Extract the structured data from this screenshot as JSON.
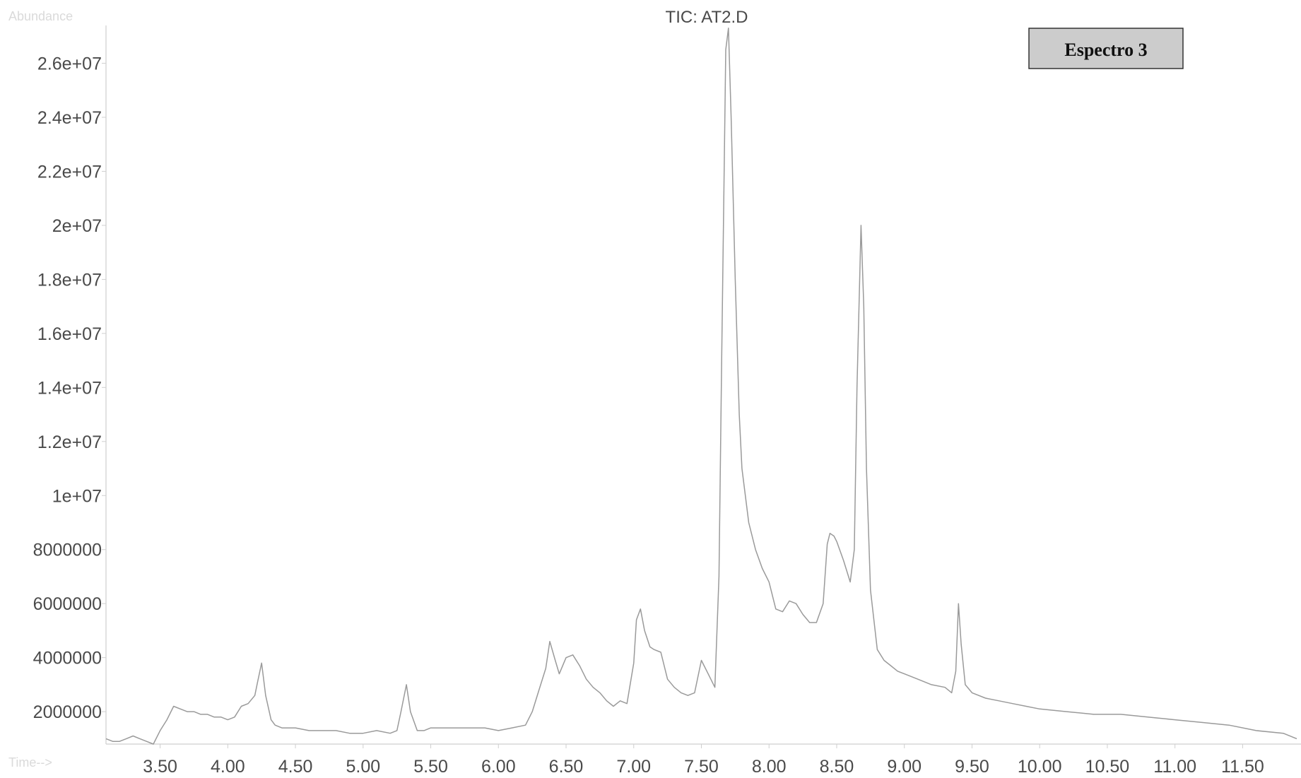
{
  "chart_data": {
    "type": "line",
    "title": "TIC: AT2.D",
    "ylabel": "Abundance",
    "xlabel": "Time-->",
    "annotation": "Espectro 3",
    "xlim": [
      3.1,
      11.9
    ],
    "ylim": [
      800000,
      27400000
    ],
    "x_ticks": [
      "3.50",
      "4.00",
      "4.50",
      "5.00",
      "5.50",
      "6.00",
      "6.50",
      "7.00",
      "7.50",
      "8.00",
      "8.50",
      "9.00",
      "9.50",
      "10.00",
      "10.50",
      "11.00",
      "11.50"
    ],
    "y_ticks": [
      "2000000",
      "4000000",
      "6000000",
      "8000000",
      "1e+07",
      "1.2e+07",
      "1.4e+07",
      "1.6e+07",
      "1.8e+07",
      "2e+07",
      "2.2e+07",
      "2.4e+07",
      "2.6e+07"
    ],
    "grid": false,
    "legend": "none",
    "series": [
      {
        "x": [
          3.1,
          3.15,
          3.2,
          3.25,
          3.3,
          3.35,
          3.4,
          3.45,
          3.5,
          3.55,
          3.6,
          3.65,
          3.7,
          3.75,
          3.8,
          3.85,
          3.9,
          3.95,
          4.0,
          4.05,
          4.1,
          4.15,
          4.2,
          4.22,
          4.25,
          4.28,
          4.32,
          4.35,
          4.4,
          4.45,
          4.5,
          4.6,
          4.7,
          4.8,
          4.9,
          5.0,
          5.1,
          5.2,
          5.25,
          5.28,
          5.32,
          5.35,
          5.4,
          5.45,
          5.5,
          5.6,
          5.7,
          5.8,
          5.9,
          6.0,
          6.1,
          6.2,
          6.25,
          6.3,
          6.35,
          6.38,
          6.42,
          6.45,
          6.5,
          6.55,
          6.6,
          6.65,
          6.7,
          6.75,
          6.8,
          6.85,
          6.9,
          6.95,
          7.0,
          7.02,
          7.05,
          7.08,
          7.12,
          7.15,
          7.2,
          7.25,
          7.3,
          7.35,
          7.4,
          7.45,
          7.5,
          7.55,
          7.6,
          7.63,
          7.65,
          7.68,
          7.7,
          7.72,
          7.75,
          7.78,
          7.8,
          7.85,
          7.9,
          7.95,
          8.0,
          8.05,
          8.1,
          8.15,
          8.2,
          8.25,
          8.3,
          8.35,
          8.4,
          8.43,
          8.45,
          8.48,
          8.5,
          8.55,
          8.6,
          8.63,
          8.65,
          8.68,
          8.7,
          8.72,
          8.75,
          8.8,
          8.85,
          8.9,
          8.95,
          9.0,
          9.1,
          9.2,
          9.3,
          9.35,
          9.38,
          9.4,
          9.42,
          9.45,
          9.5,
          9.6,
          9.7,
          9.8,
          9.9,
          10.0,
          10.2,
          10.4,
          10.6,
          10.8,
          11.0,
          11.2,
          11.4,
          11.6,
          11.8,
          11.9
        ],
        "y": [
          1000000,
          900000,
          900000,
          1000000,
          1100000,
          1000000,
          900000,
          800000,
          1300000,
          1700000,
          2200000,
          2100000,
          2000000,
          2000000,
          1900000,
          1900000,
          1800000,
          1800000,
          1700000,
          1800000,
          2200000,
          2300000,
          2600000,
          3100000,
          3800000,
          2600000,
          1700000,
          1500000,
          1400000,
          1400000,
          1400000,
          1300000,
          1300000,
          1300000,
          1200000,
          1200000,
          1300000,
          1200000,
          1300000,
          2000000,
          3000000,
          2000000,
          1300000,
          1300000,
          1400000,
          1400000,
          1400000,
          1400000,
          1400000,
          1300000,
          1400000,
          1500000,
          2000000,
          2800000,
          3600000,
          4600000,
          3900000,
          3400000,
          4000000,
          4100000,
          3700000,
          3200000,
          2900000,
          2700000,
          2400000,
          2200000,
          2400000,
          2300000,
          3800000,
          5400000,
          5800000,
          5000000,
          4400000,
          4300000,
          4200000,
          3200000,
          2900000,
          2700000,
          2600000,
          2700000,
          3900000,
          3400000,
          2900000,
          7000000,
          15000000,
          26500000,
          27300000,
          24000000,
          18000000,
          13000000,
          11000000,
          9000000,
          8000000,
          7300000,
          6800000,
          5800000,
          5700000,
          6100000,
          6000000,
          5600000,
          5300000,
          5300000,
          6000000,
          8200000,
          8600000,
          8500000,
          8300000,
          7600000,
          6800000,
          8000000,
          14000000,
          20000000,
          17000000,
          11000000,
          6500000,
          4300000,
          3900000,
          3700000,
          3500000,
          3400000,
          3200000,
          3000000,
          2900000,
          2700000,
          3500000,
          6000000,
          4500000,
          3000000,
          2700000,
          2500000,
          2400000,
          2300000,
          2200000,
          2100000,
          2000000,
          1900000,
          1900000,
          1800000,
          1700000,
          1600000,
          1500000,
          1300000,
          1200000,
          1000000
        ]
      }
    ]
  }
}
